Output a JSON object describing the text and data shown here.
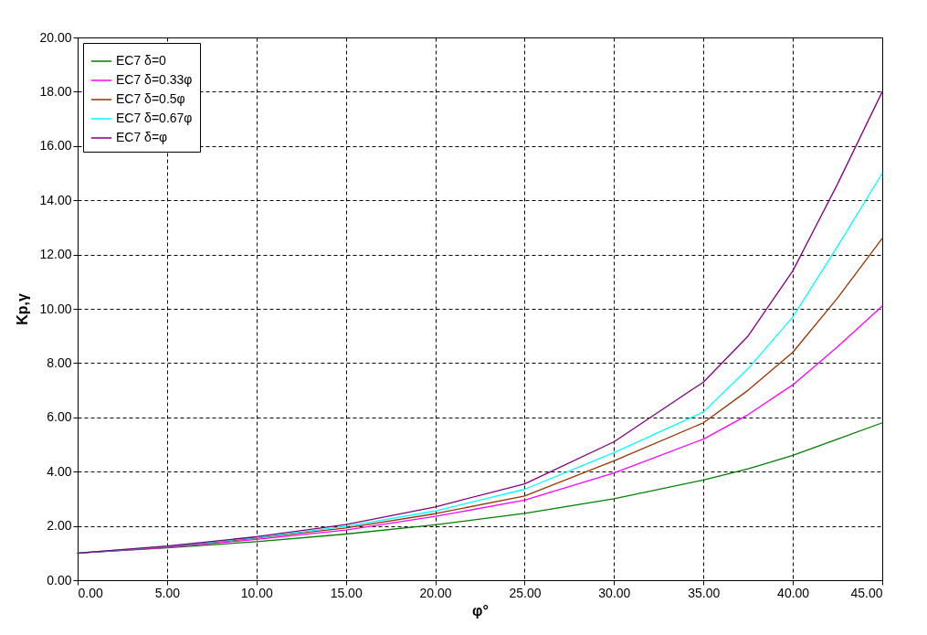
{
  "chart_data": {
    "type": "line",
    "xlabel": "φ°",
    "ylabel": "Kp,γ",
    "x": [
      0,
      5,
      10,
      15,
      20,
      25,
      30,
      35,
      37.5,
      40,
      42.5,
      45
    ],
    "series": [
      {
        "name": "EC7 δ=0",
        "color": "#008000",
        "values": [
          1,
          1.19,
          1.42,
          1.7,
          2.04,
          2.46,
          3.0,
          3.69,
          4.1,
          4.6,
          5.2,
          5.8
        ]
      },
      {
        "name": "EC7 δ=0.33φ",
        "color": "#ff00ff",
        "values": [
          1,
          1.21,
          1.5,
          1.85,
          2.35,
          2.95,
          3.95,
          5.2,
          6.1,
          7.2,
          8.6,
          10.1
        ]
      },
      {
        "name": "EC7 δ=0.5φ",
        "color": "#993300",
        "values": [
          1,
          1.23,
          1.55,
          1.92,
          2.45,
          3.1,
          4.4,
          5.8,
          7.0,
          8.4,
          10.4,
          12.6
        ]
      },
      {
        "name": "EC7 δ=0.67φ",
        "color": "#00ffff",
        "values": [
          1,
          1.25,
          1.57,
          1.98,
          2.55,
          3.35,
          4.7,
          6.2,
          7.8,
          9.7,
          12.3,
          15
        ]
      },
      {
        "name": "EC7 δ=φ",
        "color": "#800080",
        "values": [
          1,
          1.26,
          1.6,
          2.05,
          2.7,
          3.55,
          5.1,
          7.3,
          9.0,
          11.4,
          14.6,
          18
        ]
      }
    ],
    "xlim": [
      0,
      45
    ],
    "ylim": [
      0,
      20
    ],
    "xticks": [
      {
        "value": 0,
        "label": "0.00"
      },
      {
        "value": 5,
        "label": "5.00"
      },
      {
        "value": 10,
        "label": "10.00"
      },
      {
        "value": 15,
        "label": "15.00"
      },
      {
        "value": 20,
        "label": "20.00"
      },
      {
        "value": 25,
        "label": "25.00"
      },
      {
        "value": 30,
        "label": "30.00"
      },
      {
        "value": 35,
        "label": "35.00"
      },
      {
        "value": 40,
        "label": "40.00"
      },
      {
        "value": 45,
        "label": "45.00"
      }
    ],
    "yticks": [
      {
        "value": 0,
        "label": "0.00"
      },
      {
        "value": 2,
        "label": "2.00"
      },
      {
        "value": 4,
        "label": "4.00"
      },
      {
        "value": 6,
        "label": "6.00"
      },
      {
        "value": 8,
        "label": "8.00"
      },
      {
        "value": 10,
        "label": "10.00"
      },
      {
        "value": 12,
        "label": "12.00"
      },
      {
        "value": 14,
        "label": "14.00"
      },
      {
        "value": 16,
        "label": "16.00"
      },
      {
        "value": 18,
        "label": "18.00"
      },
      {
        "value": 20,
        "label": "20.00"
      }
    ],
    "grid": true,
    "legend": "top left",
    "marker": "none",
    "line_style": "solid"
  }
}
